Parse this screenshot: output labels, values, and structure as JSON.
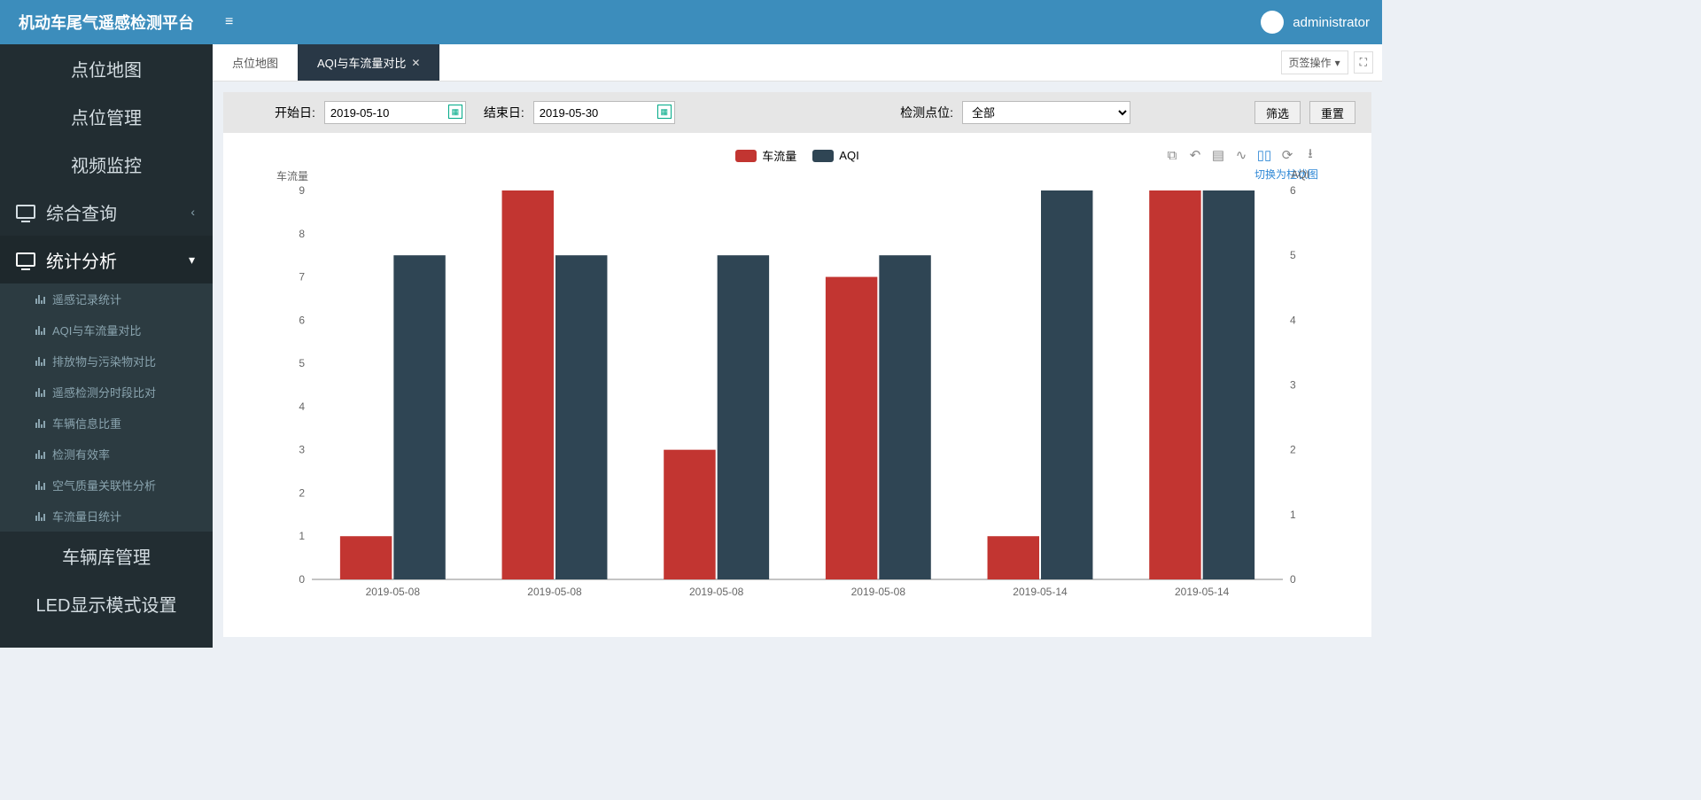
{
  "brand": "机动车尾气遥感检测平台",
  "user": {
    "name": "administrator"
  },
  "sidebar": {
    "items": [
      {
        "label": "点位地图",
        "type": "plain"
      },
      {
        "label": "点位管理",
        "type": "plain"
      },
      {
        "label": "视频监控",
        "type": "plain"
      },
      {
        "label": "综合查询",
        "type": "parent",
        "chev": "‹"
      },
      {
        "label": "统计分析",
        "type": "parent-active",
        "chev": "▾"
      },
      {
        "label": "车辆库管理",
        "type": "plain"
      },
      {
        "label": "LED显示模式设置",
        "type": "plain"
      }
    ],
    "subitems": [
      {
        "label": "遥感记录统计"
      },
      {
        "label": "AQI与车流量对比"
      },
      {
        "label": "排放物与污染物对比"
      },
      {
        "label": "遥感检测分时段比对"
      },
      {
        "label": "车辆信息比重"
      },
      {
        "label": "检测有效率"
      },
      {
        "label": "空气质量关联性分析"
      },
      {
        "label": "车流量日统计"
      }
    ]
  },
  "tabs": {
    "list": [
      {
        "label": "点位地图",
        "closable": false,
        "active": false
      },
      {
        "label": "AQI与车流量对比",
        "closable": true,
        "active": true
      }
    ],
    "actions_label": "页签操作"
  },
  "filters": {
    "start_label": "开始日:",
    "start_value": "2019-05-10",
    "end_label": "结束日:",
    "end_value": "2019-05-30",
    "site_label": "检测点位:",
    "site_value": "全部",
    "filter_btn": "筛选",
    "reset_btn": "重置"
  },
  "chart": {
    "type": "bar",
    "legend": [
      {
        "name": "车流量",
        "color": "#c23531"
      },
      {
        "name": "AQI",
        "color": "#2f4554"
      }
    ],
    "y_left": {
      "title": "车流量",
      "min": 0,
      "max": 9,
      "step": 1
    },
    "y_right": {
      "title": "AQI",
      "min": 0,
      "max": 6,
      "step": 1
    },
    "categories": [
      "2019-05-08",
      "2019-05-08",
      "2019-05-08",
      "2019-05-08",
      "2019-05-14",
      "2019-05-14"
    ],
    "series": {
      "traffic": [
        1,
        9,
        3,
        7,
        1,
        9
      ],
      "aqi": [
        5,
        5,
        5,
        5,
        6,
        6
      ]
    },
    "colors": {
      "traffic": "#c23531",
      "aqi": "#2f4554",
      "axis": "#888888",
      "text": "#666666",
      "bg": "#ffffff"
    },
    "bar_width": 0.32,
    "toolbox_hint": "切换为柱状图"
  }
}
